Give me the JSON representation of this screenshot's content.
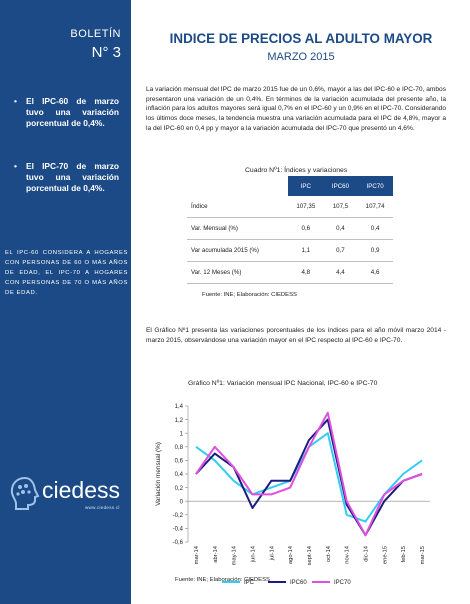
{
  "sidebar": {
    "boletin": "BOLETÍN",
    "numero": "N° 3",
    "bullets": [
      "El IPC-60 de marzo tuvo una variación porcentual de 0,4%.",
      "El IPC-70 de marzo tuvo una variación porcentual de 0,4%."
    ],
    "note": "EL IPC-60 CONSIDERA A HOGARES CON PERSONAS DE 60 O MÁS AÑOS DE EDAD, EL IPC-70 A HOGARES CON PERSONAS DE 70 O MÁS AÑOS DE EDAD.",
    "logo_text": "ciedess",
    "logo_sub": "www.ciedess.cl"
  },
  "header": {
    "title": "INDICE DE PRECIOS AL ADULTO MAYOR",
    "subtitle": "MARZO 2015"
  },
  "intro": "La variación mensual del IPC de marzo 2015 fue de un 0,6%, mayor a las del IPC-60 e IPC-70, ambos presentaron una variación de un 0,4%. En términos de la variación acumulada del presente año, la inflación para los adultos mayores será igual 0,7% en el IPC-60 y un 0,9% en el IPC-70. Considerando los últimos doce meses, la tendencia muestra una variación acumulada para el IPC de 4,8%, mayor a la del IPC-60 en 0,4 pp y mayor a la variación acumulada del IPC-70 que presentó un 4,6%.",
  "table": {
    "caption": "Cuadro Nº1: Índices y variaciones",
    "headers": [
      "",
      "IPC",
      "IPC60",
      "IPC70"
    ],
    "rows": [
      [
        "Índice",
        "107,35",
        "107,5",
        "107,74"
      ],
      [
        "Var. Mensual (%)",
        "0,6",
        "0,4",
        "0,4"
      ],
      [
        "Var acumulada 2015 (%)",
        "1,1",
        "0,7",
        "0,9"
      ],
      [
        "Var. 12 Meses (%)",
        "4,8",
        "4,4",
        "4,6"
      ]
    ],
    "source": "Fuente: INE; Elaboración: CIEDESS"
  },
  "paragraph2": "El Gráfico Nº1 presenta las variaciones porcentuales de los índices para el año móvil marzo 2014 - marzo 2015, observándose una variación mayor en el IPC respecto al IPC-60 e IPC-70.",
  "chart_data": {
    "type": "line",
    "title": "Gráfico Nº1: Variación mensual IPC Nacional, IPC-60 e IPC-70",
    "ylabel": "Variación mensual (%)",
    "xlabel": "",
    "categories": [
      "mar-14",
      "abr-14",
      "may-14",
      "jun-14",
      "jul-14",
      "ago-14",
      "sept-14",
      "oct-14",
      "nov-14",
      "dic-14",
      "ene-15",
      "feb-15",
      "mar-15"
    ],
    "ylim": [
      -0.6,
      1.4
    ],
    "yticks": [
      1.4,
      1.2,
      1,
      0.8,
      0.6,
      0.4,
      0.2,
      0,
      -0.2,
      -0.4,
      -0.6
    ],
    "ytick_labels": [
      "1,4",
      "1,2",
      "1",
      "0,8",
      "0,6",
      "0,4",
      "0,2",
      "0",
      "-0,2",
      "-0,4",
      "-0,6"
    ],
    "grid": false,
    "legend_position": "bottom",
    "series": [
      {
        "name": "IPC",
        "color": "#33ccf2",
        "values": [
          0.8,
          0.6,
          0.3,
          0.1,
          0.2,
          0.3,
          0.8,
          1.0,
          -0.2,
          -0.3,
          0.1,
          0.4,
          0.6
        ]
      },
      {
        "name": "IPC60",
        "color": "#1c1c80",
        "values": [
          0.4,
          0.7,
          0.5,
          -0.1,
          0.3,
          0.3,
          0.9,
          1.2,
          -0.05,
          -0.5,
          0.0,
          0.3,
          0.4
        ]
      },
      {
        "name": "IPC70",
        "color": "#e04fe0",
        "values": [
          0.4,
          0.8,
          0.5,
          0.1,
          0.1,
          0.2,
          0.8,
          1.3,
          0.0,
          -0.5,
          0.1,
          0.3,
          0.4
        ]
      }
    ],
    "source": "Fuente: INE; Elaboración: CIEDESS"
  }
}
